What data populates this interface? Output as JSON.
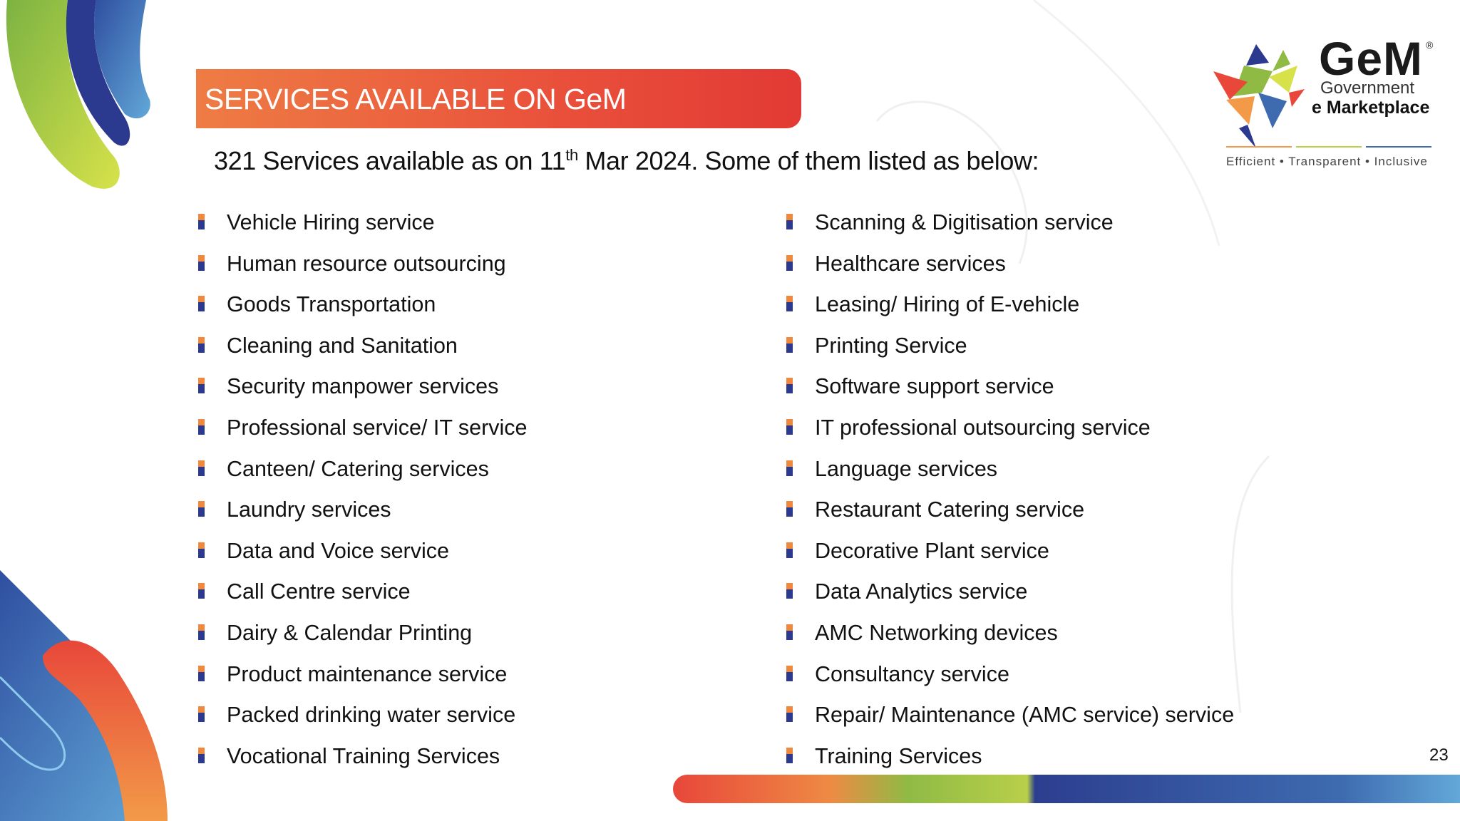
{
  "title": "SERVICES AVAILABLE ON GeM",
  "subtitle": {
    "before": "321 Services available as on 11",
    "sup": "th",
    "after": " Mar 2024. Some of them listed as below:"
  },
  "services_left": [
    "Vehicle Hiring service",
    "Human resource outsourcing",
    "Goods Transportation",
    "Cleaning and Sanitation",
    "Security manpower services",
    "Professional service/ IT service",
    "Canteen/ Catering services",
    "Laundry services",
    "Data and Voice service",
    "Call Centre service",
    "Dairy & Calendar Printing",
    "Product maintenance service",
    "Packed drinking water service",
    "Vocational Training Services"
  ],
  "services_right": [
    "Scanning & Digitisation service",
    "Healthcare services",
    "Leasing/ Hiring of E-vehicle",
    "Printing Service",
    "Software support service",
    "IT professional outsourcing service",
    "Language services",
    "Restaurant Catering service",
    "Decorative Plant service",
    "Data Analytics service",
    "AMC Networking devices",
    "Consultancy service",
    "Repair/ Maintenance (AMC service) service",
    "Training Services"
  ],
  "logo": {
    "word": "GeM",
    "registered": "®",
    "line1": "Government",
    "line2": "e Marketplace",
    "tagline": "Efficient • Transparent • Inclusive"
  },
  "page_number": "23",
  "colors": {
    "banner_orange": "#ee7c44",
    "banner_red": "#e23a34",
    "bullet_orange": "#f0883e",
    "bullet_navy": "#2b3a8e",
    "green": "#8fbb45",
    "blue": "#3e6bb0"
  }
}
